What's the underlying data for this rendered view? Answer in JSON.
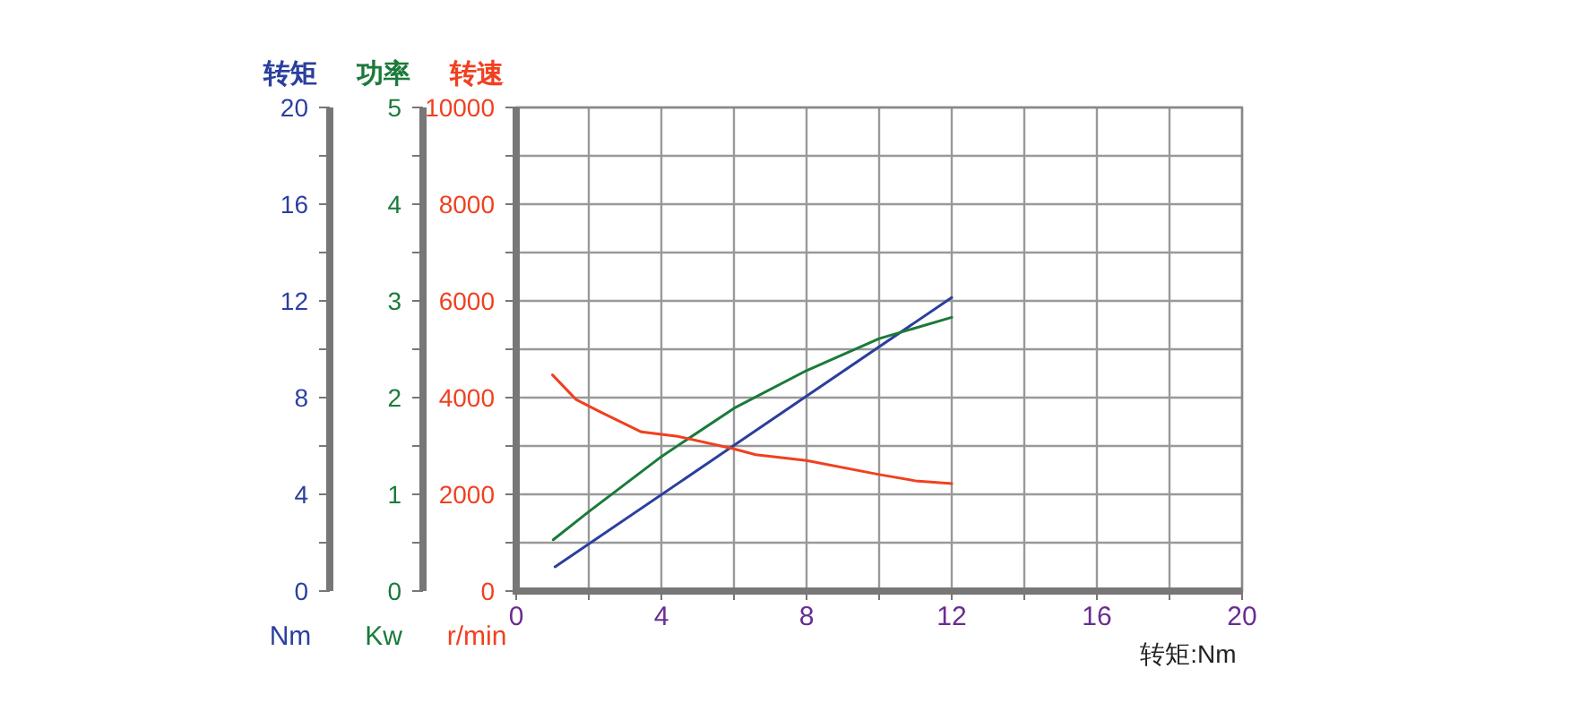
{
  "chart_data": {
    "type": "line",
    "ylabel": "转速",
    "y2label": "功率",
    "y3label": "转矩",
    "xlabel": "转矩:Nm",
    "annotations": [
      "r/min",
      "Kw",
      "Nm"
    ],
    "xlim": [
      0,
      20
    ],
    "xticks": [
      0,
      {
        "value": 2,
        "label": null
      },
      4,
      {
        "value": 6,
        "label": null
      },
      8,
      {
        "value": 10,
        "label": null
      },
      12,
      {
        "value": 14,
        "label": null
      },
      16,
      {
        "value": 18,
        "label": null
      },
      20
    ],
    "ylim": [
      0,
      10000
    ],
    "yticks": [
      0,
      {
        "value": 1000,
        "label": null
      },
      2000,
      {
        "value": 3000,
        "label": null
      },
      4000,
      {
        "value": 5000,
        "label": null
      },
      6000,
      {
        "value": 7000,
        "label": null
      },
      8000,
      {
        "value": 9000,
        "label": null
      },
      10000
    ],
    "y2lim": [
      0,
      5
    ],
    "y2ticks": [
      0,
      {
        "value": 0.5,
        "label": null
      },
      1,
      {
        "value": 1.5,
        "label": null
      },
      2,
      {
        "value": 2.5,
        "label": null
      },
      3,
      {
        "value": 3.5,
        "label": null
      },
      4,
      {
        "value": 4.5,
        "label": null
      },
      5
    ],
    "y3lim": [
      0,
      20
    ],
    "y3ticks": [
      0,
      {
        "value": 2,
        "label": null
      },
      4,
      {
        "value": 6,
        "label": null
      },
      8,
      {
        "value": 10,
        "label": null
      },
      12,
      {
        "value": 14,
        "label": null
      },
      16,
      {
        "value": 18,
        "label": null
      },
      20
    ],
    "grid": true,
    "marker": "none",
    "line_style": "solid",
    "series": [
      {
        "color": "#2b3f9e",
        "axis": "y3",
        "x": [
          1.07,
          12
        ],
        "values": [
          1.0,
          12.14
        ]
      },
      {
        "color": "#1a7a3a",
        "axis": "y2",
        "x": [
          1.02,
          2,
          4,
          6,
          8,
          10,
          12
        ],
        "values": [
          0.53,
          0.82,
          1.39,
          1.89,
          2.28,
          2.61,
          2.83
        ]
      },
      {
        "color": "#f04020",
        "axis": "y",
        "x": [
          1,
          1.65,
          2.3,
          3.45,
          4.45,
          6,
          6.6,
          8,
          10,
          11,
          12
        ],
        "values": [
          4470,
          3960,
          3710,
          3290,
          3200,
          2940,
          2820,
          2700,
          2410,
          2280,
          2220
        ]
      }
    ]
  }
}
